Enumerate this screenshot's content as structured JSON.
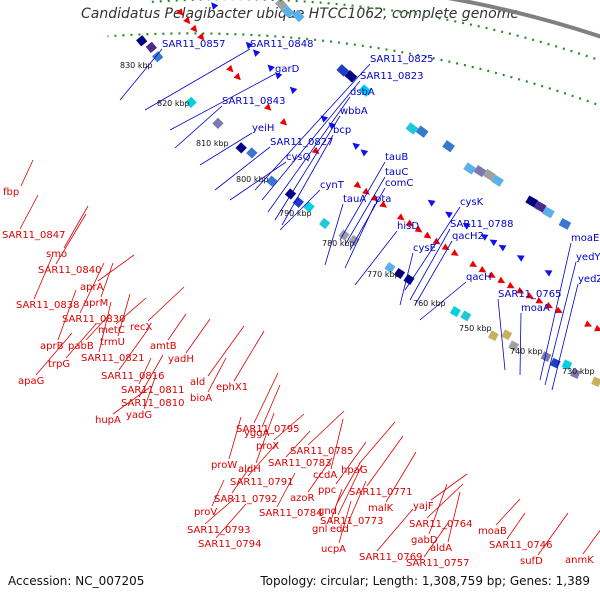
{
  "title": "Candidatus Pelagibacter ubique HTCC1062, complete genome",
  "footer": {
    "accession": "Accession: NC_007205",
    "summary": "Topology: circular; Length: 1,308,759 bp; Genes: 1,389"
  },
  "colors": {
    "forward_label": "#0000cc",
    "reverse_label": "#dd0000",
    "backbone": "#808080",
    "gc_dots": "#2a8a2a"
  },
  "kbp_ticks": [
    "830 kbp",
    "820 kbp",
    "810 kbp",
    "800 kbp",
    "790 kbp",
    "780 kbp",
    "770 kbp",
    "760 kbp",
    "750 kbp",
    "740 kbp",
    "730 kbp"
  ],
  "forward_labels": [
    "SAR11_0857",
    "SAR11_0848",
    "garD",
    "SAR11_0843",
    "yeiH",
    "SAR11_0827",
    "cysQ",
    "SAR11_0825",
    "SAR11_0823",
    "dsbA",
    "wbbA",
    "bcp",
    "cynT",
    "tauB",
    "tauC",
    "comC",
    "tauA",
    "pta",
    "hisD",
    "cysK",
    "SAR11_0788",
    "qacH2",
    "cysE",
    "qacH",
    "SAR11_0765",
    "moaA",
    "moaE",
    "yedY",
    "yedZ"
  ],
  "reverse_labels": [
    "fbp",
    "SAR11_0847",
    "smo",
    "SAR11_0840",
    "aprA",
    "aprM",
    "SAR11_0838",
    "SAR11_0830",
    "metC",
    "recX",
    "trmU",
    "aprB",
    "pabB",
    "trpG",
    "apaG",
    "SAR11_0821",
    "amtB",
    "yadH",
    "SAR11_0816",
    "ald",
    "SAR11_0811",
    "bioA",
    "SAR11_0810",
    "ephX1",
    "hupA",
    "yadG",
    "yggA",
    "SAR11_0795",
    "proX",
    "SAR11_0785",
    "proW",
    "aldH",
    "SAR11_0783",
    "SAR11_0791",
    "hpaG",
    "ccdA",
    "SAR11_0792",
    "azoR",
    "ppc",
    "SAR11_0771",
    "proV",
    "SAR11_0784",
    "gnd",
    "malK",
    "yajF",
    "gnl",
    "edd",
    "SAR11_0773",
    "SAR11_0793",
    "SAR11_0764",
    "ucpA",
    "gabD",
    "moaB",
    "SAR11_0794",
    "SAR11_0769",
    "aldA",
    "SAR11_0746",
    "SAR11_0757",
    "sufD",
    "anmK"
  ]
}
